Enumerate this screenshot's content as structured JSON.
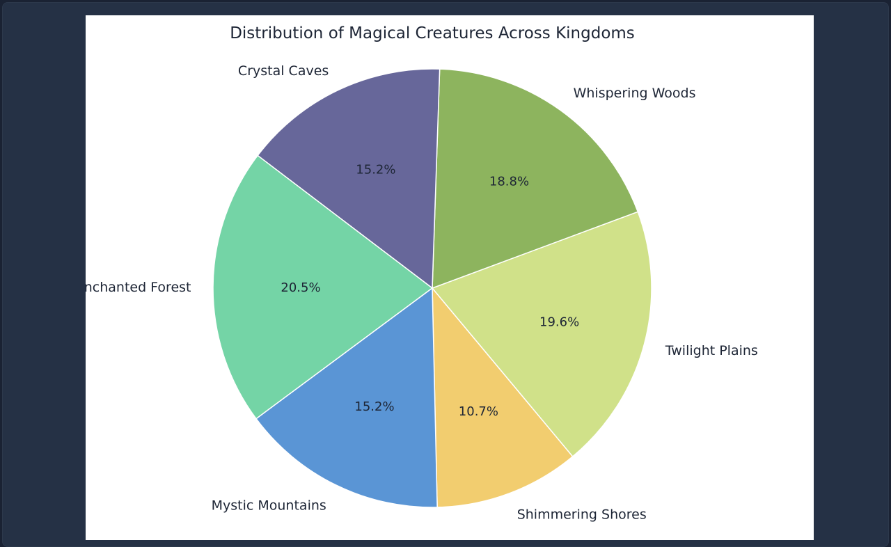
{
  "chart_data": {
    "type": "pie",
    "title": "Distribution of Magical Creatures Across Kingdoms",
    "categories": [
      "Shimmering Shores",
      "Twilight Plains",
      "Whispering Woods",
      "Crystal Caves",
      "Enchanted Forest",
      "Mystic Mountains"
    ],
    "values": [
      10.7,
      19.6,
      18.8,
      15.2,
      20.5,
      15.2
    ],
    "labels": [
      "10.7%",
      "19.6%",
      "18.8%",
      "15.2%",
      "20.5%",
      "15.2%"
    ],
    "colors": [
      "#f2cd6f",
      "#d0e189",
      "#8db45e",
      "#67679a",
      "#74d4a6",
      "#5a95d5"
    ],
    "start_angle_deg": -88.7,
    "direction": "counterclockwise",
    "legend": "none"
  }
}
